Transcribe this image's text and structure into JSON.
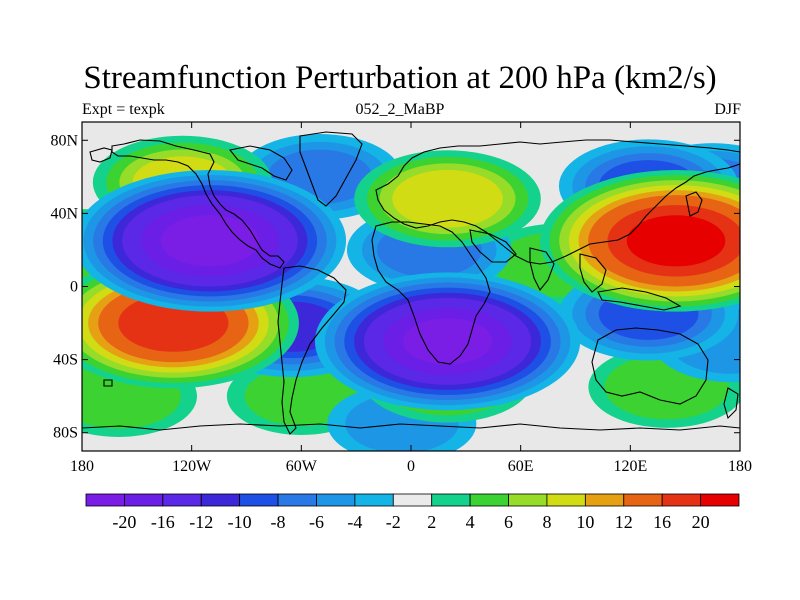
{
  "title": "Streamfunction Perturbation at 200 hPa (km2/s)",
  "left_label": "Expt = texpk",
  "center_label": "052_2_MaBP",
  "right_label": "DJF",
  "colors": {
    "background": "#e8e8e8",
    "coast": "#000000"
  },
  "chart_data": {
    "type": "heatmap",
    "title": "Streamfunction Perturbation at 200 hPa (km2/s)",
    "x_ticks": [
      "180",
      "120W",
      "60W",
      "0",
      "60E",
      "120E",
      "180"
    ],
    "x_tick_values": [
      -180,
      -120,
      -60,
      0,
      60,
      120,
      180
    ],
    "y_ticks": [
      "80N",
      "40N",
      "0",
      "40S",
      "80S"
    ],
    "y_tick_values": [
      80,
      40,
      0,
      -40,
      -80
    ],
    "xlim": [
      -180,
      180
    ],
    "ylim": [
      -90,
      90
    ],
    "colorbar": {
      "labels": [
        "-20",
        "-16",
        "-12",
        "-10",
        "-8",
        "-6",
        "-4",
        "-2",
        "2",
        "4",
        "6",
        "8",
        "10",
        "12",
        "16",
        "20"
      ],
      "levels": [
        -20,
        -16,
        -12,
        -10,
        -8,
        -6,
        -4,
        -2,
        2,
        4,
        6,
        8,
        10,
        12,
        16,
        20
      ],
      "colors": [
        "#7a1ee6",
        "#6a1ee6",
        "#5a28e6",
        "#3c28d8",
        "#1e50e6",
        "#2878e6",
        "#1e96e6",
        "#14b4e6",
        "#ebebeb",
        "#14d28c",
        "#3cd232",
        "#96dc28",
        "#d2dc14",
        "#e6a014",
        "#e66414",
        "#e63214",
        "#e60000"
      ]
    },
    "centers": [
      {
        "lon": -110,
        "lat": 25,
        "value": -21
      },
      {
        "lon": 20,
        "lat": -30,
        "value": -20
      },
      {
        "lon": -65,
        "lat": -22,
        "value": -10
      },
      {
        "lon": 145,
        "lat": 25,
        "value": 21
      },
      {
        "lon": -130,
        "lat": -20,
        "value": 18
      },
      {
        "lon": -125,
        "lat": 57,
        "value": 8
      },
      {
        "lon": 20,
        "lat": 48,
        "value": 9
      },
      {
        "lon": -160,
        "lat": -60,
        "value": 5
      },
      {
        "lon": 20,
        "lat": -50,
        "value": 7
      },
      {
        "lon": 130,
        "lat": 55,
        "value": -8
      },
      {
        "lon": 130,
        "lat": -15,
        "value": -8
      },
      {
        "lon": 165,
        "lat": 55,
        "value": -6
      },
      {
        "lon": -50,
        "lat": 60,
        "value": -6
      },
      {
        "lon": 10,
        "lat": 20,
        "value": -6
      },
      {
        "lon": -60,
        "lat": -60,
        "value": 4
      },
      {
        "lon": 140,
        "lat": -55,
        "value": 5
      },
      {
        "lon": 80,
        "lat": 12,
        "value": 5
      },
      {
        "lon": -178,
        "lat": 20,
        "value": 5
      },
      {
        "lon": -5,
        "lat": -75,
        "value": -4
      },
      {
        "lon": 175,
        "lat": -30,
        "value": -5
      }
    ]
  }
}
